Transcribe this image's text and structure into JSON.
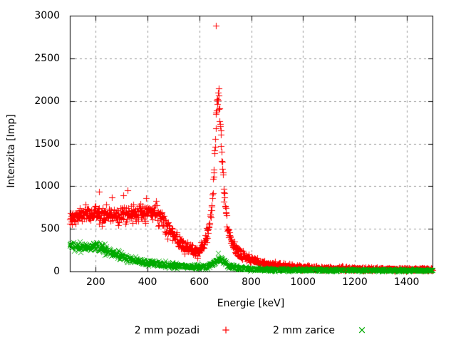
{
  "chart_data": {
    "type": "scatter",
    "title": "",
    "xlabel": "Energie [keV]",
    "ylabel": "Intenzita [Imp]",
    "xlim": [
      100,
      1500
    ],
    "ylim": [
      0,
      3000
    ],
    "xticks": [
      200,
      400,
      600,
      800,
      1000,
      1200,
      1400
    ],
    "yticks": [
      0,
      500,
      1000,
      1500,
      2000,
      2500,
      3000
    ],
    "grid": "dashed-gray-on",
    "grid_color": "#9a9a9a",
    "border_color": "#000000",
    "legend_position": "below-plot",
    "series": [
      {
        "name": "2 mm pozadi",
        "marker": "plus",
        "color": "#ff0000",
        "step_kev": 1.2,
        "noise_factor": 1.9,
        "anchors": [
          [
            100,
            590
          ],
          [
            115,
            635
          ],
          [
            130,
            655
          ],
          [
            150,
            662
          ],
          [
            170,
            668
          ],
          [
            200,
            680
          ],
          [
            220,
            672
          ],
          [
            240,
            668
          ],
          [
            260,
            672
          ],
          [
            280,
            675
          ],
          [
            300,
            680
          ],
          [
            320,
            683
          ],
          [
            340,
            685
          ],
          [
            360,
            690
          ],
          [
            380,
            695
          ],
          [
            400,
            700
          ],
          [
            415,
            705
          ],
          [
            430,
            698
          ],
          [
            445,
            662
          ],
          [
            460,
            608
          ],
          [
            475,
            538
          ],
          [
            490,
            462
          ],
          [
            505,
            398
          ],
          [
            520,
            345
          ],
          [
            535,
            300
          ],
          [
            550,
            272
          ],
          [
            565,
            252
          ],
          [
            580,
            242
          ],
          [
            595,
            246
          ],
          [
            605,
            262
          ],
          [
            615,
            300
          ],
          [
            625,
            372
          ],
          [
            635,
            492
          ],
          [
            645,
            700
          ],
          [
            652,
            950
          ],
          [
            658,
            1300
          ],
          [
            663,
            1720
          ],
          [
            667,
            2010
          ],
          [
            670,
            2100
          ],
          [
            674,
            2040
          ],
          [
            678,
            1860
          ],
          [
            683,
            1560
          ],
          [
            688,
            1240
          ],
          [
            694,
            940
          ],
          [
            700,
            715
          ],
          [
            707,
            535
          ],
          [
            715,
            418
          ],
          [
            724,
            338
          ],
          [
            735,
            278
          ],
          [
            748,
            232
          ],
          [
            762,
            198
          ],
          [
            778,
            170
          ],
          [
            800,
            144
          ],
          [
            825,
            120
          ],
          [
            850,
            102
          ],
          [
            880,
            85
          ],
          [
            910,
            72
          ],
          [
            940,
            62
          ],
          [
            970,
            54
          ],
          [
            1000,
            48
          ],
          [
            1050,
            42
          ],
          [
            1100,
            38
          ],
          [
            1160,
            34
          ],
          [
            1220,
            31
          ],
          [
            1300,
            28
          ],
          [
            1400,
            26
          ],
          [
            1500,
            25
          ]
        ],
        "outliers": [
          [
            212,
            940
          ],
          [
            262,
            865
          ],
          [
            305,
            890
          ],
          [
            324,
            950
          ],
          [
            394,
            860
          ],
          [
            664,
            2880
          ]
        ]
      },
      {
        "name": "2 mm zarice",
        "marker": "cross",
        "color": "#00aa00",
        "step_kev": 1.2,
        "noise_factor": 1.6,
        "anchors": [
          [
            100,
            315
          ],
          [
            120,
            302
          ],
          [
            140,
            292
          ],
          [
            160,
            288
          ],
          [
            180,
            292
          ],
          [
            200,
            296
          ],
          [
            215,
            288
          ],
          [
            230,
            268
          ],
          [
            250,
            238
          ],
          [
            270,
            205
          ],
          [
            290,
            182
          ],
          [
            310,
            162
          ],
          [
            330,
            146
          ],
          [
            350,
            132
          ],
          [
            375,
            118
          ],
          [
            400,
            105
          ],
          [
            430,
            93
          ],
          [
            460,
            82
          ],
          [
            490,
            73
          ],
          [
            520,
            66
          ],
          [
            550,
            60
          ],
          [
            580,
            56
          ],
          [
            610,
            56
          ],
          [
            630,
            62
          ],
          [
            645,
            78
          ],
          [
            658,
            105
          ],
          [
            668,
            135
          ],
          [
            676,
            150
          ],
          [
            684,
            145
          ],
          [
            692,
            128
          ],
          [
            700,
            108
          ],
          [
            710,
            85
          ],
          [
            722,
            65
          ],
          [
            735,
            52
          ],
          [
            750,
            44
          ],
          [
            775,
            37
          ],
          [
            800,
            32
          ],
          [
            850,
            27
          ],
          [
            900,
            24
          ],
          [
            950,
            22
          ],
          [
            1000,
            20
          ],
          [
            1100,
            18
          ],
          [
            1200,
            17
          ],
          [
            1350,
            16
          ],
          [
            1500,
            15
          ]
        ],
        "outliers": []
      }
    ]
  },
  "legend": {
    "entries": [
      {
        "label": "2 mm pozadi",
        "symbol": "+",
        "color": "#ff0000"
      },
      {
        "label": "2 mm zarice",
        "symbol": "×",
        "color": "#00aa00"
      }
    ]
  }
}
